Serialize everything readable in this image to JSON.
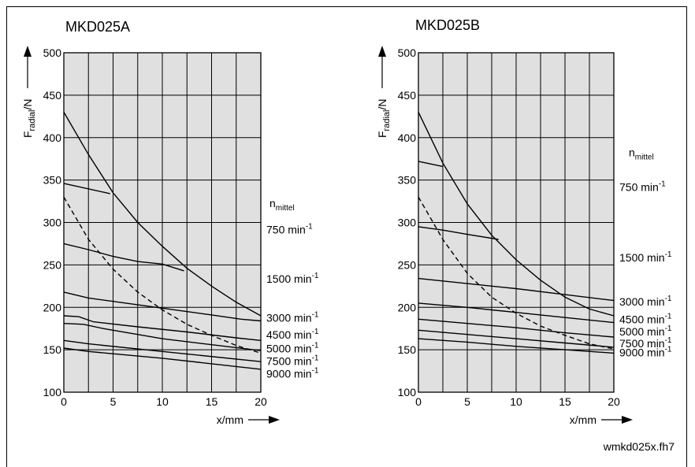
{
  "footer": "wmkd025x.fh7",
  "colors": {
    "plot_bg": "#e0e0e0",
    "grid": "#000000",
    "line": "#000000"
  },
  "chart_data": [
    {
      "type": "line",
      "title": "MKD025A",
      "ylabel": "F_radial/N",
      "xlabel": "x/mm",
      "xlim": [
        0,
        20
      ],
      "ylim": [
        100,
        500
      ],
      "xticks": [
        0,
        5,
        10,
        15,
        20
      ],
      "yticks": [
        100,
        150,
        200,
        250,
        300,
        350,
        400,
        450,
        500
      ],
      "grid": true,
      "speed_header": "n",
      "speed_header_sub": "mittel",
      "series": [
        {
          "name": "750 min",
          "sup": "-1",
          "label_y": 287,
          "dashed": false,
          "x": [
            0,
            4.7
          ],
          "y": [
            346,
            334
          ]
        },
        {
          "name": "1500 min",
          "sup": "-1",
          "label_y": 229,
          "dashed": false,
          "x": [
            0,
            2.5,
            5,
            7.5,
            10,
            12.2
          ],
          "y": [
            275,
            268,
            260,
            254,
            251,
            243
          ]
        },
        {
          "name": "3000 min",
          "sup": "-1",
          "label_y": 183,
          "dashed": false,
          "x": [
            0,
            2.5,
            5,
            10,
            15,
            18,
            20
          ],
          "y": [
            218,
            211,
            207,
            199,
            191,
            186,
            184
          ]
        },
        {
          "name": "4500 min",
          "sup": "-1",
          "label_y": 163,
          "dashed": false,
          "x": [
            0,
            1.5,
            3,
            7.5,
            12.5,
            17.5,
            20
          ],
          "y": [
            190,
            189,
            183,
            177,
            171,
            164,
            161
          ]
        },
        {
          "name": "5000 min",
          "sup": "-1",
          "label_y": 147,
          "dashed": false,
          "x": [
            0,
            2,
            4,
            10,
            20
          ],
          "y": [
            181,
            180,
            175,
            163,
            149
          ]
        },
        {
          "name": "7500 min",
          "sup": "-1",
          "label_y": 132,
          "dashed": false,
          "x": [
            0,
            2.5,
            10,
            20
          ],
          "y": [
            161,
            157,
            148,
            136
          ]
        },
        {
          "name": "9000 min",
          "sup": "-1",
          "label_y": 117,
          "dashed": false,
          "x": [
            0,
            2.5,
            10,
            20
          ],
          "y": [
            152,
            148,
            140,
            127
          ]
        },
        {
          "name": "",
          "sup": "",
          "dashed": false,
          "x": [
            0,
            2.5,
            5,
            7.5,
            10,
            12.5,
            15,
            17.5,
            20
          ],
          "y": [
            430,
            380,
            335,
            300,
            272,
            246,
            225,
            206,
            190
          ]
        },
        {
          "name": "",
          "sup": "",
          "dashed": true,
          "x": [
            0,
            2.5,
            5,
            7.5,
            10,
            12.5,
            15,
            17.5,
            20
          ],
          "y": [
            330,
            280,
            245,
            218,
            197,
            180,
            167,
            155,
            146
          ]
        }
      ]
    },
    {
      "type": "line",
      "title": "MKD025B",
      "ylabel": "F_radial/N",
      "xlabel": "x/mm",
      "xlim": [
        0,
        20
      ],
      "ylim": [
        100,
        500
      ],
      "xticks": [
        0,
        5,
        10,
        15,
        20
      ],
      "yticks": [
        100,
        150,
        200,
        250,
        300,
        350,
        400,
        450,
        500
      ],
      "grid": true,
      "speed_header": "n",
      "speed_header_sub": "mittel",
      "speed_header_y": 378,
      "series": [
        {
          "name": "750 min",
          "sup": "-1",
          "label_y": 337,
          "dashed": false,
          "x": [
            0,
            2.5
          ],
          "y": [
            372,
            366
          ]
        },
        {
          "name": "1500 min",
          "sup": "-1",
          "label_y": 254,
          "dashed": false,
          "x": [
            0,
            2.5,
            5,
            8.2
          ],
          "y": [
            295,
            291,
            286,
            280
          ]
        },
        {
          "name": "3000 min",
          "sup": "-1",
          "label_y": 202,
          "dashed": false,
          "x": [
            0,
            5,
            10,
            15,
            20
          ],
          "y": [
            234,
            228,
            222,
            215,
            208
          ]
        },
        {
          "name": "4500 min",
          "sup": "-1",
          "label_y": 181,
          "dashed": false,
          "x": [
            0,
            5,
            10,
            15,
            20
          ],
          "y": [
            205,
            200,
            194,
            188,
            182
          ]
        },
        {
          "name": "5000 min",
          "sup": "-1",
          "label_y": 167,
          "dashed": false,
          "x": [
            0,
            5,
            10,
            15,
            20
          ],
          "y": [
            186,
            181,
            176,
            170,
            165
          ]
        },
        {
          "name": "7500 min",
          "sup": "-1",
          "label_y": 153,
          "dashed": false,
          "x": [
            0,
            5,
            10,
            15,
            20
          ],
          "y": [
            173,
            168,
            163,
            158,
            153
          ]
        },
        {
          "name": "9000 min",
          "sup": "-1",
          "label_y": 142,
          "dashed": false,
          "x": [
            0,
            5,
            10,
            15,
            20
          ],
          "y": [
            163,
            159,
            154,
            150,
            146
          ]
        },
        {
          "name": "",
          "sup": "",
          "dashed": false,
          "x": [
            0,
            2.5,
            5,
            7.5,
            10,
            12.5,
            15,
            17.5,
            20
          ],
          "y": [
            430,
            370,
            322,
            285,
            256,
            232,
            212,
            198,
            190
          ]
        },
        {
          "name": "",
          "sup": "",
          "dashed": true,
          "x": [
            0,
            2.5,
            5,
            7.5,
            10,
            12.5,
            15,
            17.5,
            20
          ],
          "y": [
            330,
            280,
            240,
            212,
            193,
            178,
            167,
            157,
            151
          ]
        }
      ]
    }
  ]
}
